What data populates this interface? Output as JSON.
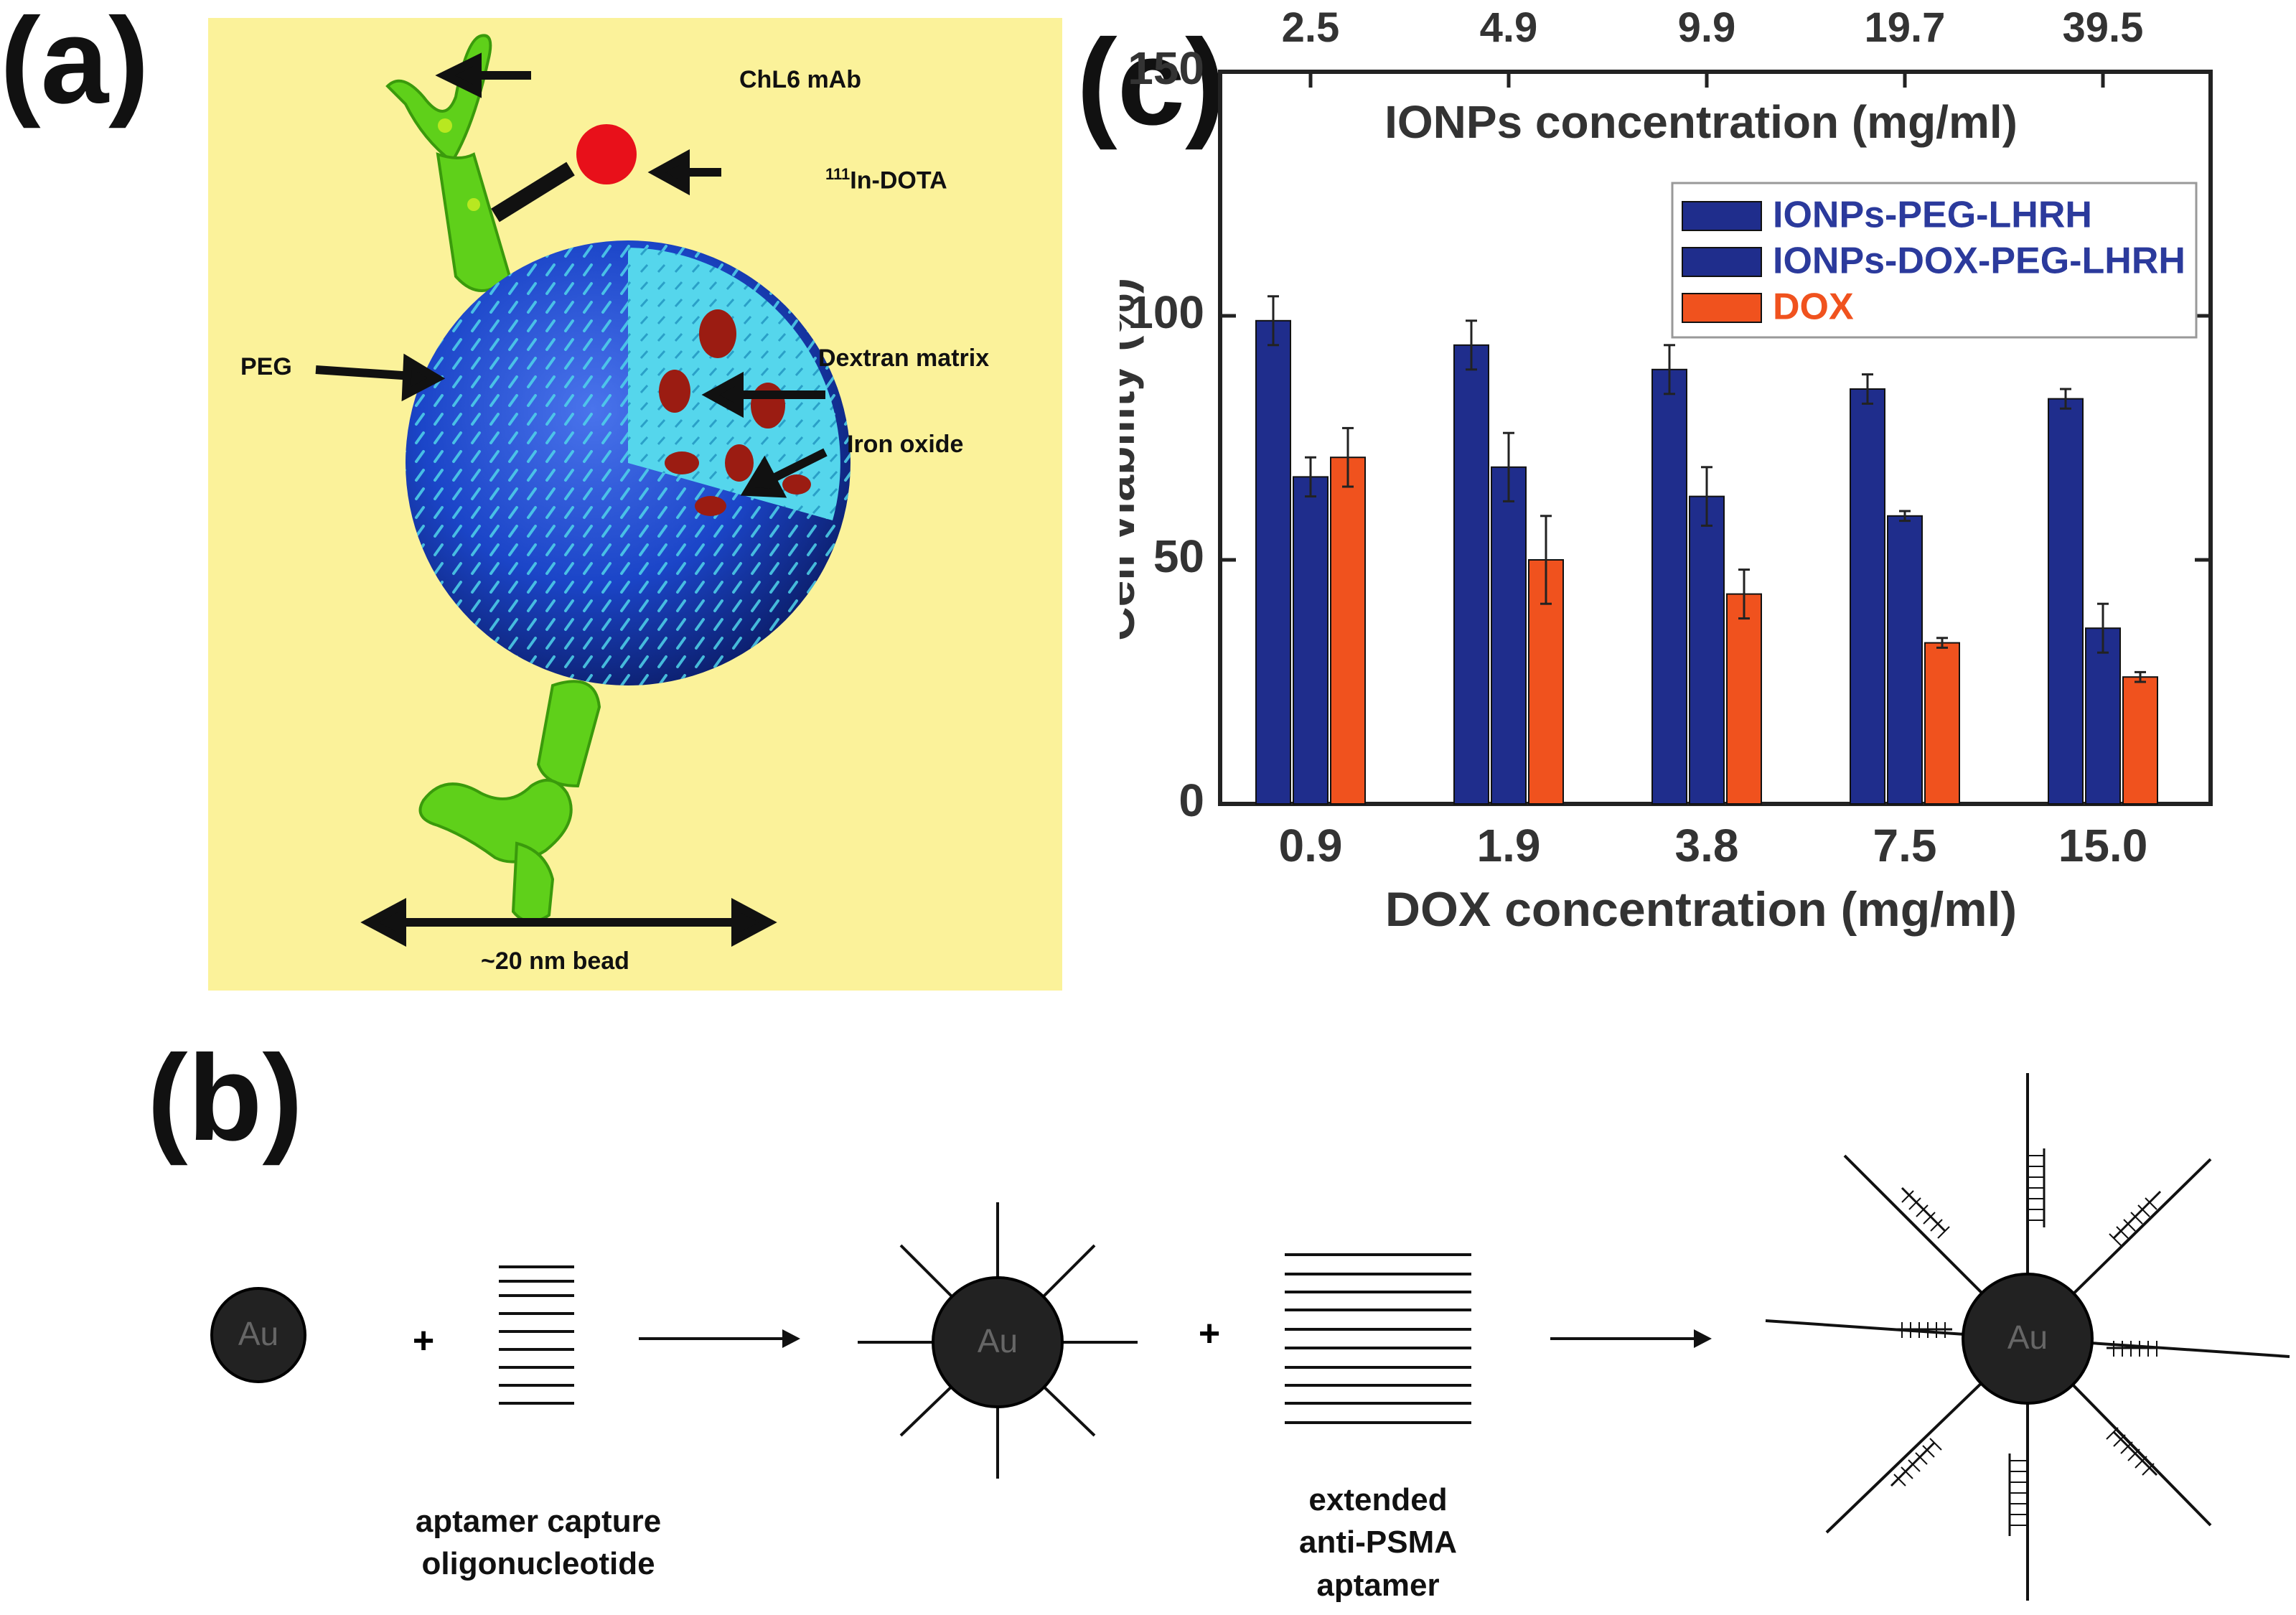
{
  "panels": {
    "a": "(a)",
    "b": "(b)",
    "c": "(c)"
  },
  "panel_a": {
    "labels": {
      "mab": "ChL6 mAb",
      "dota_sup": "111",
      "dota": "In-DOTA",
      "peg": "PEG",
      "dextran": "Dextran matrix",
      "iron": "Iron oxide",
      "size": "~20 nm bead"
    },
    "colors": {
      "background": "#fbf29a",
      "sphere": "#1b45c8",
      "spikes": "#4fd4ea",
      "antibody": "#5fd01a",
      "core": "#9b1c12",
      "dota_dot": "#e8101a"
    }
  },
  "panel_b": {
    "au": "Au",
    "plus": "+",
    "capture_label_1": "aptamer capture",
    "capture_label_2": "oligonucleotide",
    "aptamer_label_1": "extended",
    "aptamer_label_2": "anti-PSMA",
    "aptamer_label_3": "aptamer"
  },
  "chart_data": {
    "type": "bar",
    "categories": [
      "0.9",
      "1.9",
      "3.8",
      "7.5",
      "15.0"
    ],
    "top_categories": [
      "2.5",
      "4.9",
      "9.9",
      "19.7",
      "39.5"
    ],
    "xlabel": "DOX concentration (mg/ml)",
    "top_xlabel": "IONPs concentration (mg/ml)",
    "ylabel": "Cell viability (%)",
    "ylim": [
      0,
      150
    ],
    "yticks": [
      0,
      50,
      100,
      150
    ],
    "legend_position": "top-right",
    "series": [
      {
        "name": "IONPs-PEG-LHRH",
        "color": "#1f2d8c",
        "values": [
          99,
          94,
          89,
          85,
          83
        ],
        "errors": [
          5,
          5,
          5,
          3,
          2
        ]
      },
      {
        "name": "IONPs-DOX-PEG-LHRH",
        "color": "#1f2d8c",
        "values": [
          67,
          69,
          63,
          59,
          36
        ],
        "errors": [
          4,
          7,
          6,
          1,
          5
        ]
      },
      {
        "name": "DOX",
        "color": "#f0521e",
        "values": [
          71,
          50,
          43,
          33,
          26
        ],
        "errors": [
          6,
          9,
          5,
          1,
          1
        ]
      }
    ],
    "legend_text_colors": [
      "#2b3a9c",
      "#2b3a9c",
      "#f0521e"
    ]
  }
}
